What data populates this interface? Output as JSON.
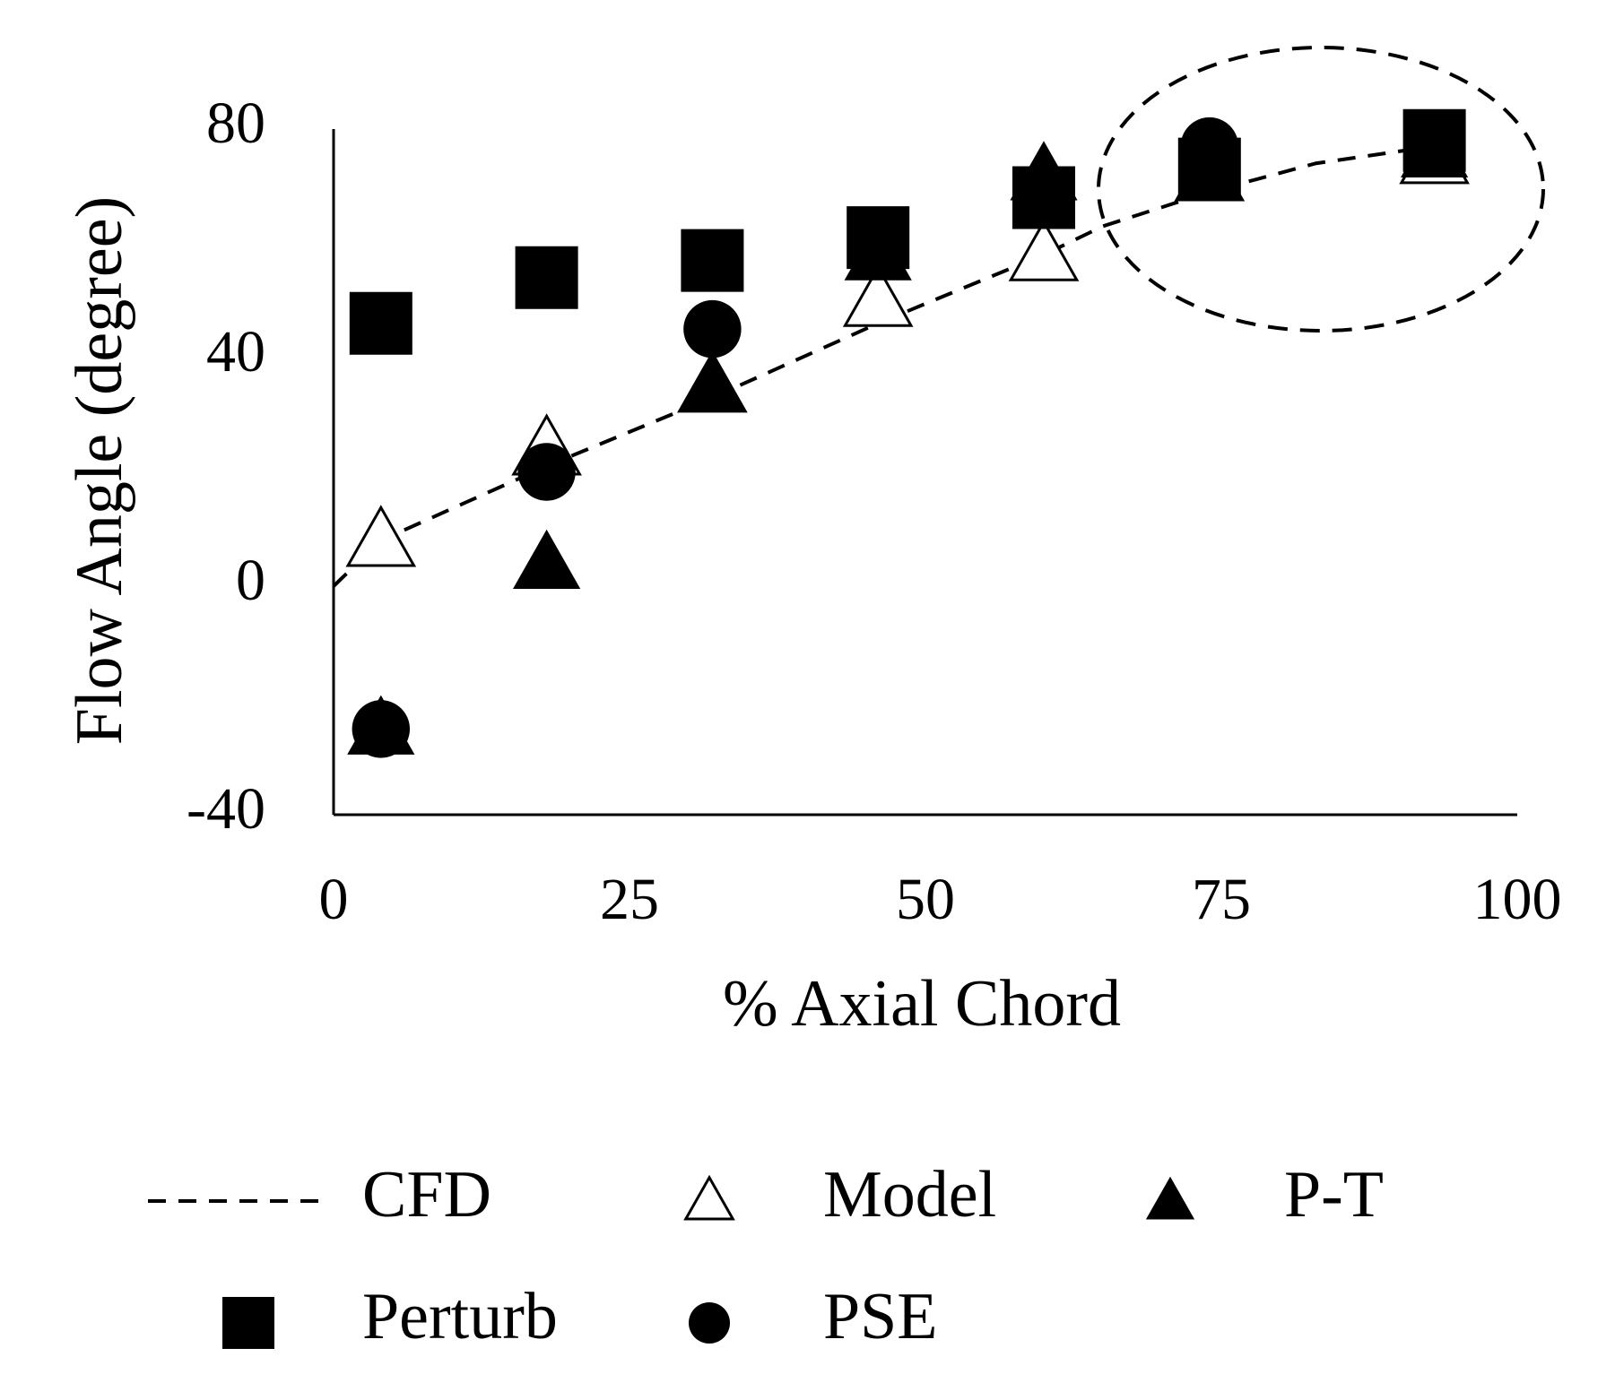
{
  "chart_data": {
    "type": "scatter",
    "x_label": "% Axial Chord",
    "y_label": "Flow Angle (degree)",
    "xlim": [
      0,
      100
    ],
    "xticks": [
      0,
      25,
      50,
      75,
      100
    ],
    "ylim": [
      -40,
      80
    ],
    "yticks": [
      -40,
      0,
      40,
      80
    ],
    "grid": false,
    "series": [
      {
        "name": "CFD",
        "color": "#000000",
        "marker": "none",
        "linestyle": "dashed",
        "x": [
          0,
          4,
          18,
          32,
          46,
          60,
          65,
          74,
          83,
          93
        ],
        "values": [
          0,
          8,
          21,
          33,
          46,
          58,
          63,
          69,
          74,
          77
        ]
      },
      {
        "name": "Model",
        "color": "#000000",
        "marker": "triangle-open",
        "x": [
          4,
          18,
          32,
          46,
          60,
          74,
          93
        ],
        "values": [
          8,
          24,
          35,
          50,
          58,
          72,
          75
        ]
      },
      {
        "name": "P-T",
        "color": "#000000",
        "marker": "triangle",
        "x": [
          4,
          18,
          32,
          46,
          60,
          74,
          93
        ],
        "values": [
          -25,
          4,
          35,
          58,
          72,
          72,
          76
        ]
      },
      {
        "name": "Perturb",
        "color": "#000000",
        "marker": "square",
        "x": [
          4,
          18,
          32,
          46,
          60,
          74,
          93
        ],
        "values": [
          46,
          54,
          57,
          61,
          68,
          73,
          78
        ]
      },
      {
        "name": "PSE",
        "color": "#000000",
        "marker": "circle",
        "x": [
          4,
          18,
          32,
          46,
          60,
          74,
          93
        ],
        "values": [
          -25,
          20,
          45,
          60,
          68,
          77,
          78
        ]
      }
    ]
  }
}
